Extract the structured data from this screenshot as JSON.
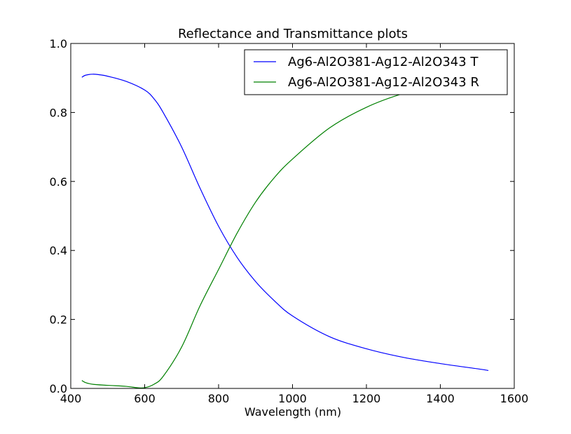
{
  "chart_data": {
    "type": "line",
    "title": "Reflectance and Transmittance plots",
    "xlabel": "Wavelength (nm)",
    "ylabel": "",
    "xlim": [
      400,
      1600
    ],
    "ylim": [
      0.0,
      1.0
    ],
    "xticks": [
      "400",
      "600",
      "800",
      "1000",
      "1200",
      "1400",
      "1600"
    ],
    "yticks": [
      "0.0",
      "0.2",
      "0.4",
      "0.6",
      "0.8",
      "1.0"
    ],
    "grid": false,
    "legend_position": "upper-right",
    "series": [
      {
        "name": "Ag6-Al2O381-Ag12-Al2O343 T",
        "color": "#0000ff",
        "x": [
          430,
          440,
          460,
          480,
          500,
          550,
          600,
          625,
          650,
          700,
          750,
          800,
          850,
          900,
          950,
          1000,
          1100,
          1200,
          1300,
          1400,
          1500,
          1530
        ],
        "y": [
          0.902,
          0.908,
          0.911,
          0.909,
          0.905,
          0.89,
          0.865,
          0.84,
          0.8,
          0.7,
          0.58,
          0.47,
          0.38,
          0.31,
          0.255,
          0.21,
          0.15,
          0.115,
          0.09,
          0.072,
          0.057,
          0.052
        ]
      },
      {
        "name": "Ag6-Al2O381-Ag12-Al2O343 R",
        "color": "#008000",
        "x": [
          430,
          440,
          460,
          500,
          550,
          580,
          600,
          625,
          650,
          700,
          750,
          800,
          850,
          900,
          950,
          1000,
          1100,
          1200,
          1300,
          1400,
          1500,
          1530
        ],
        "y": [
          0.023,
          0.017,
          0.012,
          0.009,
          0.006,
          0.002,
          0.002,
          0.012,
          0.035,
          0.12,
          0.24,
          0.345,
          0.45,
          0.54,
          0.61,
          0.665,
          0.755,
          0.815,
          0.855,
          0.88,
          0.9,
          0.905
        ]
      }
    ]
  }
}
